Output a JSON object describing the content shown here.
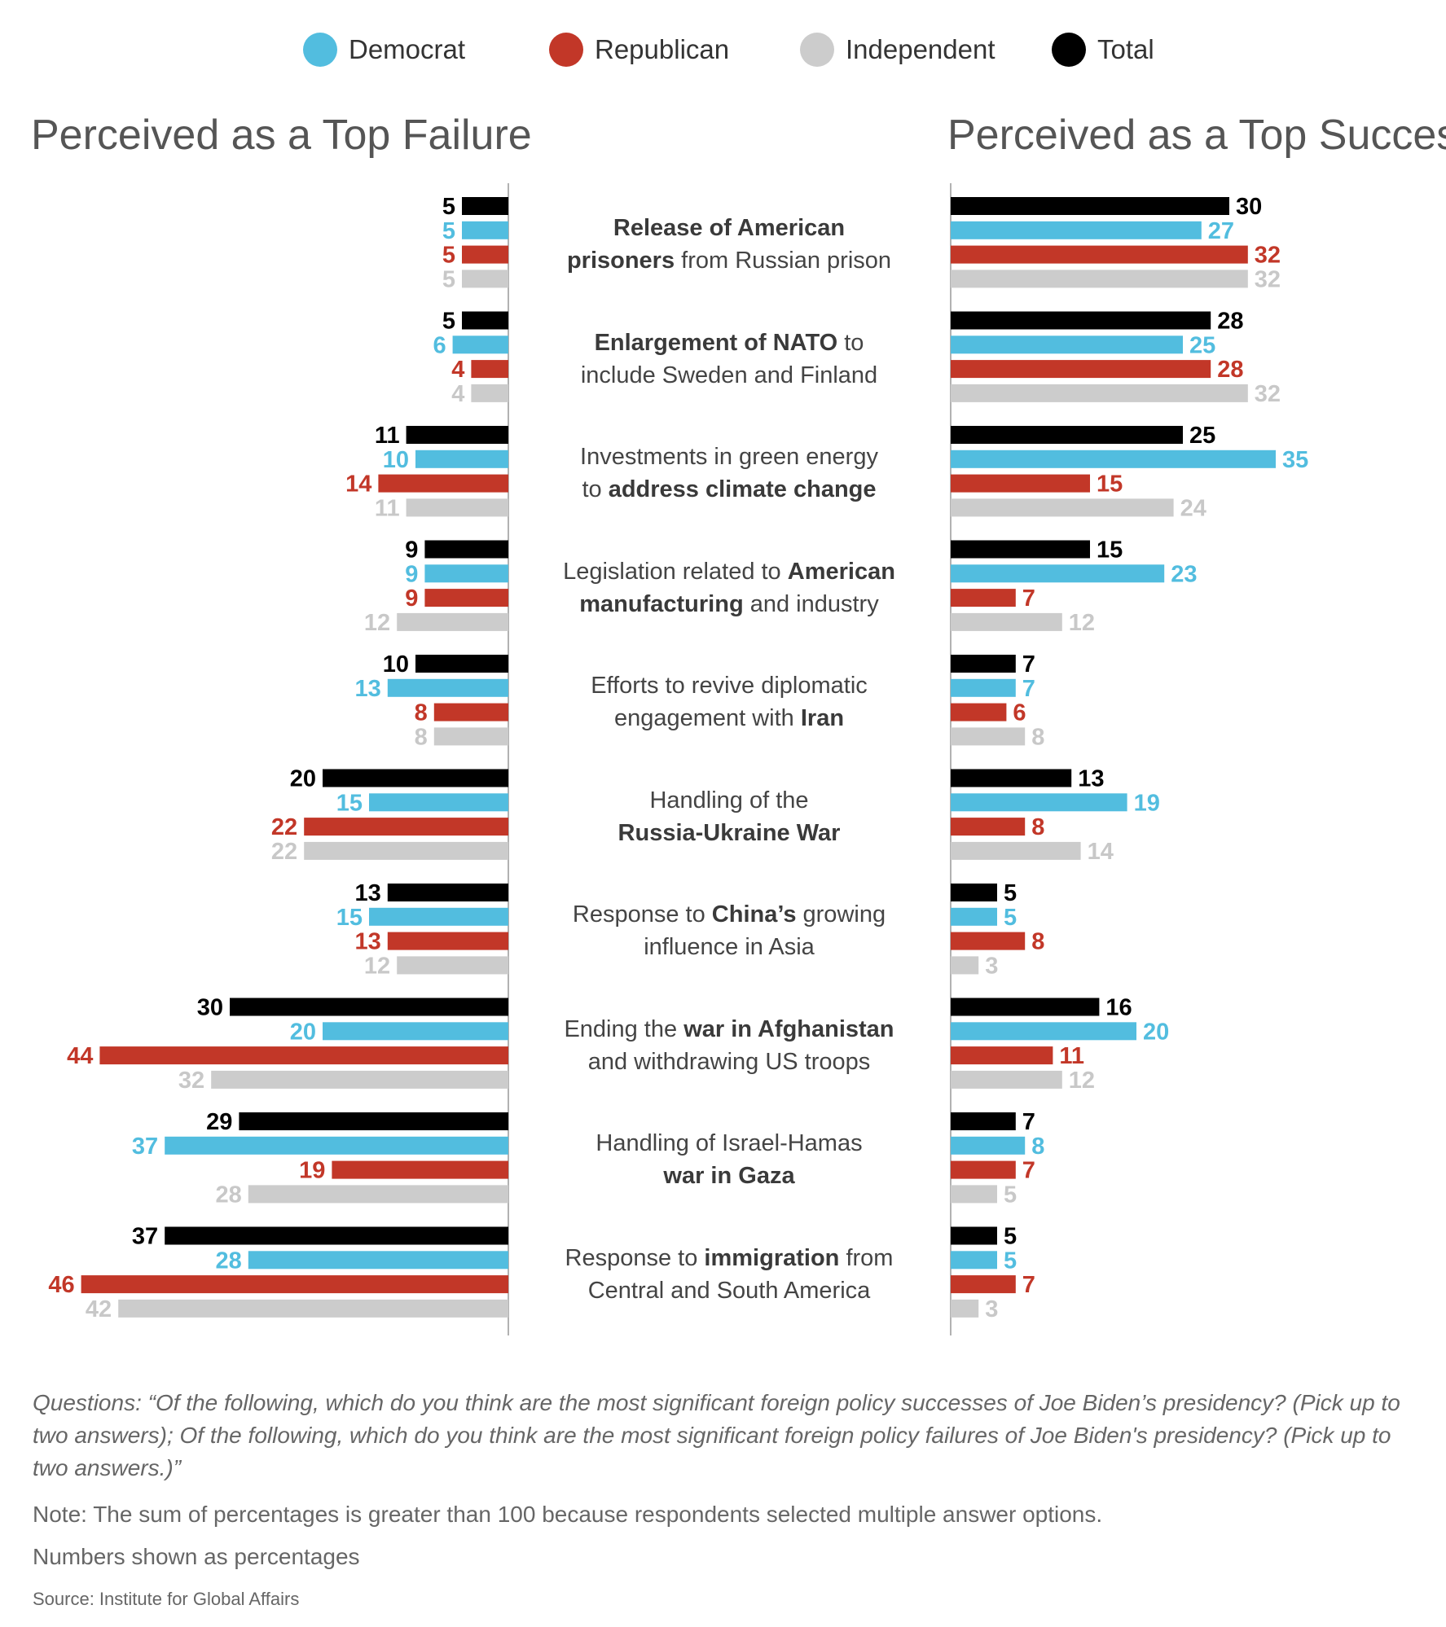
{
  "legend": [
    {
      "name": "Democrat",
      "color": "#52bddf"
    },
    {
      "name": "Republican",
      "color": "#c23728"
    },
    {
      "name": "Independent",
      "color": "#cccccc"
    },
    {
      "name": "Total",
      "color": "#000000"
    }
  ],
  "chart_data": {
    "type": "bar",
    "orientation": "horizontal-diverging",
    "left_title": "Perceived as a Top Failure",
    "right_title": "Perceived as a Top Success",
    "series_order": [
      "Total",
      "Democrat",
      "Republican",
      "Independent"
    ],
    "categories": [
      {
        "label": [
          {
            "t": "Release of American",
            "b": true
          },
          {
            "br": true
          },
          {
            "t": "prisoners",
            "b": true
          },
          {
            "t": " from Russian prison"
          }
        ],
        "failure": [
          5,
          5,
          5,
          5
        ],
        "success": [
          30,
          27,
          32,
          32
        ]
      },
      {
        "label": [
          {
            "t": "Enlargement of NATO",
            "b": true
          },
          {
            "t": " to"
          },
          {
            "br": true
          },
          {
            "t": "include Sweden and Finland"
          }
        ],
        "failure": [
          5,
          6,
          4,
          4
        ],
        "success": [
          28,
          25,
          28,
          32
        ]
      },
      {
        "label": [
          {
            "t": "Investments in green energy"
          },
          {
            "br": true
          },
          {
            "t": "to "
          },
          {
            "t": "address climate change",
            "b": true
          }
        ],
        "failure": [
          11,
          10,
          14,
          11
        ],
        "success": [
          25,
          35,
          15,
          24
        ]
      },
      {
        "label": [
          {
            "t": "Legislation related to "
          },
          {
            "t": "American",
            "b": true
          },
          {
            "br": true
          },
          {
            "t": "manufacturing",
            "b": true
          },
          {
            "t": " and industry"
          }
        ],
        "failure": [
          9,
          9,
          9,
          12
        ],
        "success": [
          15,
          23,
          7,
          12
        ]
      },
      {
        "label": [
          {
            "t": "Efforts to revive diplomatic"
          },
          {
            "br": true
          },
          {
            "t": "engagement with "
          },
          {
            "t": "Iran",
            "b": true
          }
        ],
        "failure": [
          10,
          13,
          8,
          8
        ],
        "success": [
          7,
          7,
          6,
          8
        ]
      },
      {
        "label": [
          {
            "t": "Handling of the"
          },
          {
            "br": true
          },
          {
            "t": "Russia-Ukraine War",
            "b": true
          }
        ],
        "failure": [
          20,
          15,
          22,
          22
        ],
        "success": [
          13,
          19,
          8,
          14
        ]
      },
      {
        "label": [
          {
            "t": "Response to "
          },
          {
            "t": "China’s",
            "b": true
          },
          {
            "t": " growing"
          },
          {
            "br": true
          },
          {
            "t": "influence in Asia"
          }
        ],
        "failure": [
          13,
          15,
          13,
          12
        ],
        "success": [
          5,
          5,
          8,
          3
        ]
      },
      {
        "label": [
          {
            "t": "Ending the "
          },
          {
            "t": "war in Afghanistan",
            "b": true
          },
          {
            "br": true
          },
          {
            "t": "and withdrawing US troops"
          }
        ],
        "failure": [
          30,
          20,
          44,
          32
        ],
        "success": [
          16,
          20,
          11,
          12
        ]
      },
      {
        "label": [
          {
            "t": "Handling of Israel-Hamas"
          },
          {
            "br": true
          },
          {
            "t": "war in Gaza",
            "b": true
          }
        ],
        "failure": [
          29,
          37,
          19,
          28
        ],
        "success": [
          7,
          8,
          7,
          5
        ]
      },
      {
        "label": [
          {
            "t": "Response to "
          },
          {
            "t": "immigration",
            "b": true
          },
          {
            "t": " from"
          },
          {
            "br": true
          },
          {
            "t": "Central and South America"
          }
        ],
        "failure": [
          37,
          28,
          46,
          42
        ],
        "success": [
          5,
          5,
          7,
          3
        ]
      }
    ],
    "label_colors": {
      "Total": "#000000",
      "Democrat": "#52bddf",
      "Republican": "#c23728",
      "Independent": "#c8c8c8"
    }
  },
  "footer": {
    "questions": "Questions: “Of the following, which do you think are the most significant foreign policy successes of Joe Biden’s presidency? (Pick up to two answers); Of the following, which do you think are the most significant foreign policy failures of Joe Biden's presidency? (Pick up to two answers.)”",
    "note": "Note: The sum of percentages is greater than  100 because respondents selected multiple answer options.",
    "units": "Numbers shown as percentages",
    "source": "Source: Institute for Global Affairs"
  }
}
